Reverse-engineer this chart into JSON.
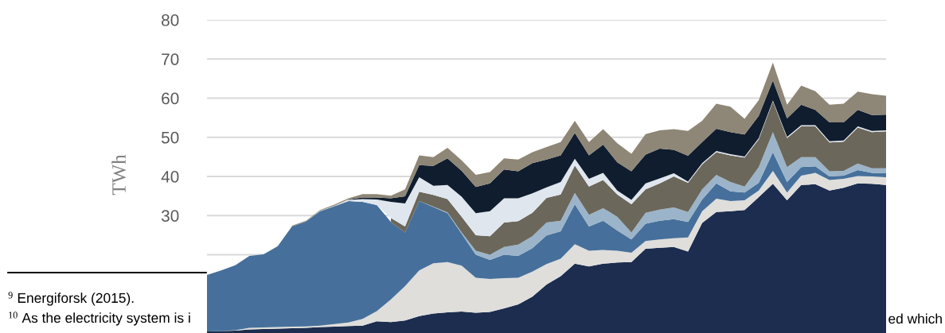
{
  "chart_data": {
    "type": "area",
    "stacked": true,
    "ylabel": "TWh",
    "categories": [
      null,
      null,
      null,
      null,
      null,
      null,
      null,
      null,
      null,
      null,
      null,
      null,
      null,
      null,
      null,
      null,
      null,
      null,
      null,
      null,
      null,
      null,
      null,
      null,
      null,
      null,
      null,
      null,
      null,
      null,
      null,
      null,
      null,
      null,
      null,
      null,
      null,
      null,
      null,
      null,
      null,
      null,
      null,
      null,
      null,
      null,
      null,
      null,
      null
    ],
    "series": [
      {
        "color": "#1c2d4f",
        "values": [
          0.4,
          0.5,
          0.6,
          0.9,
          1.0,
          1.1,
          1.2,
          1.3,
          1.5,
          1.6,
          1.8,
          1.9,
          3.0,
          2.8,
          3.2,
          4.3,
          5.0,
          5.3,
          5.5,
          5.2,
          5.4,
          6.3,
          7.3,
          9.3,
          12.4,
          14.5,
          17.7,
          17.0,
          17.7,
          18.0,
          18.1,
          21.5,
          21.8,
          22.0,
          20.8,
          28.1,
          30.9,
          31.1,
          31.4,
          34.7,
          38.1,
          33.9,
          37.8,
          38.0,
          36.4,
          37.1,
          38.2,
          38.1,
          37.8
        ]
      },
      {
        "color": "#dfdedb",
        "values": [
          0,
          0,
          0.1,
          0.4,
          0.4,
          0.4,
          0.4,
          0.4,
          0.4,
          0.7,
          0.9,
          1.7,
          2.6,
          5.8,
          8.8,
          11.7,
          12.8,
          12.8,
          11.7,
          8.9,
          8.4,
          7.7,
          6.8,
          6.4,
          5.2,
          4.5,
          5.0,
          4.0,
          3.5,
          3.0,
          2.4,
          2.0,
          2.1,
          2.2,
          3.6,
          3.0,
          3.4,
          2.6,
          2.5,
          1.7,
          3.3,
          2.0,
          2.4,
          2.9,
          2.7,
          2.3,
          1.9,
          1.9,
          2.0
        ]
      },
      {
        "color": "#46709b",
        "values": [
          14.4,
          15.5,
          16.6,
          18.4,
          18.7,
          20.7,
          25.6,
          26.8,
          29.2,
          30.1,
          31.0,
          29.9,
          27.1,
          19.8,
          13.7,
          17.7,
          14.4,
          12.5,
          8.2,
          5.9,
          4.9,
          6.0,
          5.6,
          6.0,
          7.3,
          7.0,
          10.2,
          6.2,
          7.5,
          5.2,
          3.4,
          4.4,
          4.8,
          4.9,
          4.0,
          3.0,
          3.9,
          2.5,
          2.0,
          2.0,
          4.8,
          2.7,
          2.2,
          1.7,
          0.9,
          0.8,
          1.5,
          0.9,
          1.0
        ]
      },
      {
        "color": "#9bb4c9",
        "values": [
          null,
          null,
          null,
          null,
          null,
          null,
          null,
          null,
          null,
          null,
          null,
          null,
          null,
          null,
          null,
          null,
          0.1,
          0.2,
          0.3,
          1.0,
          1.3,
          2.0,
          2.9,
          3.0,
          3.3,
          2.7,
          2.9,
          3.0,
          3.2,
          3.5,
          1.8,
          2.8,
          2.8,
          3.0,
          2.5,
          2.6,
          2.2,
          2.4,
          1.5,
          4.0,
          5.1,
          3.8,
          2.5,
          2.3,
          1.3,
          1.2,
          1.7,
          1.2,
          1.3
        ]
      },
      {
        "color": "#6b675b",
        "values": [
          null,
          null,
          null,
          null,
          null,
          null,
          null,
          null,
          null,
          null,
          null,
          null,
          null,
          1.0,
          1.5,
          2.4,
          3.0,
          3.4,
          4.0,
          4.0,
          4.7,
          6.2,
          6.0,
          6.0,
          6.3,
          6.7,
          7.0,
          7.2,
          7.2,
          5.7,
          7.2,
          6.0,
          6.7,
          7.9,
          7.5,
          6.4,
          5.8,
          6.8,
          7.4,
          7.1,
          7.9,
          7.4,
          7.9,
          7.9,
          7.4,
          7.5,
          9.2,
          9.2,
          9.4
        ]
      },
      {
        "color": "#dfe6ee",
        "values": [
          null,
          null,
          null,
          null,
          null,
          null,
          null,
          null,
          0.1,
          0.1,
          0.3,
          0.7,
          1.4,
          4.1,
          5.9,
          3.7,
          2.3,
          3.6,
          5.1,
          5.6,
          6.4,
          6.2,
          5.8,
          5.0,
          2.7,
          3.2,
          1.7,
          2.0,
          1.8,
          1.0,
          1.1,
          1.5,
          1.3,
          0.8,
          0.3,
          0.3,
          0.3,
          0.3,
          0.3,
          0.3,
          0.2,
          0.3,
          0.3,
          0.3,
          0.3,
          0.3,
          0.3,
          0.3,
          0.3
        ]
      },
      {
        "color": "#101d2e",
        "values": [
          null,
          null,
          null,
          null,
          null,
          null,
          null,
          null,
          null,
          null,
          0.1,
          0.4,
          0.5,
          0.9,
          1.8,
          3.1,
          5.1,
          6.8,
          6.6,
          6.7,
          7.1,
          7.4,
          6.9,
          7.7,
          7.1,
          6.8,
          6.6,
          6.0,
          7.2,
          7.2,
          7.3,
          7.4,
          7.6,
          6.0,
          6.6,
          5.4,
          5.7,
          5.6,
          5.6,
          5.7,
          5.1,
          4.7,
          5.2,
          3.9,
          4.8,
          4.6,
          4.2,
          4.1,
          4.0
        ]
      },
      {
        "color": "#8e8676",
        "values": [
          null,
          null,
          null,
          null,
          null,
          null,
          0.2,
          0.2,
          0.2,
          0.3,
          0.3,
          0.9,
          0.9,
          0.7,
          1.8,
          2.5,
          2.2,
          2.7,
          2.7,
          3.1,
          2.9,
          2.8,
          3.0,
          2.8,
          3.2,
          3.4,
          3.1,
          3.4,
          4.0,
          4.9,
          4.5,
          5.2,
          4.7,
          5.3,
          6.3,
          5.4,
          6.4,
          6.5,
          4.0,
          4.0,
          4.6,
          3.5,
          4.9,
          4.8,
          4.5,
          4.8,
          4.7,
          5.3,
          4.8
        ]
      }
    ],
    "ylim": [
      0,
      80
    ],
    "yticks": [
      {
        "value": 20,
        "label": null
      },
      30,
      40,
      50,
      60,
      70,
      80
    ],
    "grid": "y",
    "tick_labels": "y",
    "annotations": [
      "$^{9}$ Energiforsk (2015).",
      "$^{10}$ As the electricity system is i",
      "ed which"
    ]
  }
}
